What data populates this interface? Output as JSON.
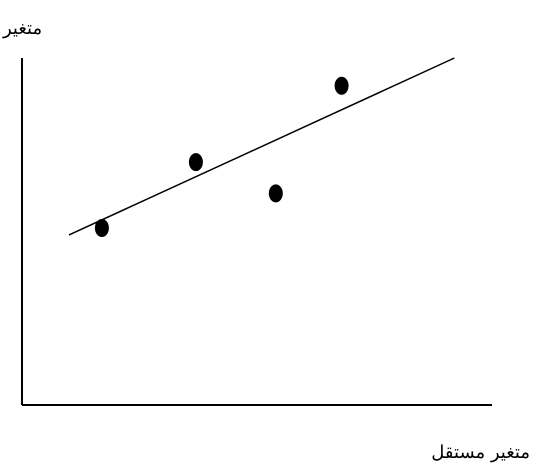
{
  "chart_data": {
    "type": "scatter",
    "title": "",
    "xlabel": "متغير مستقل",
    "ylabel": "متغير",
    "xlim": [
      0,
      10
    ],
    "ylim": [
      0,
      10
    ],
    "grid": false,
    "series": [
      {
        "points": [
          {
            "x": 1.7,
            "y": 5.1
          },
          {
            "x": 3.7,
            "y": 7.0
          },
          {
            "x": 5.4,
            "y": 6.1
          },
          {
            "x": 6.8,
            "y": 9.2
          }
        ]
      }
    ],
    "trendline": {
      "x": [
        1.0,
        9.2
      ],
      "y": [
        4.9,
        10.0
      ]
    },
    "colors": {
      "ink": "#000000",
      "background": "#ffffff"
    }
  }
}
